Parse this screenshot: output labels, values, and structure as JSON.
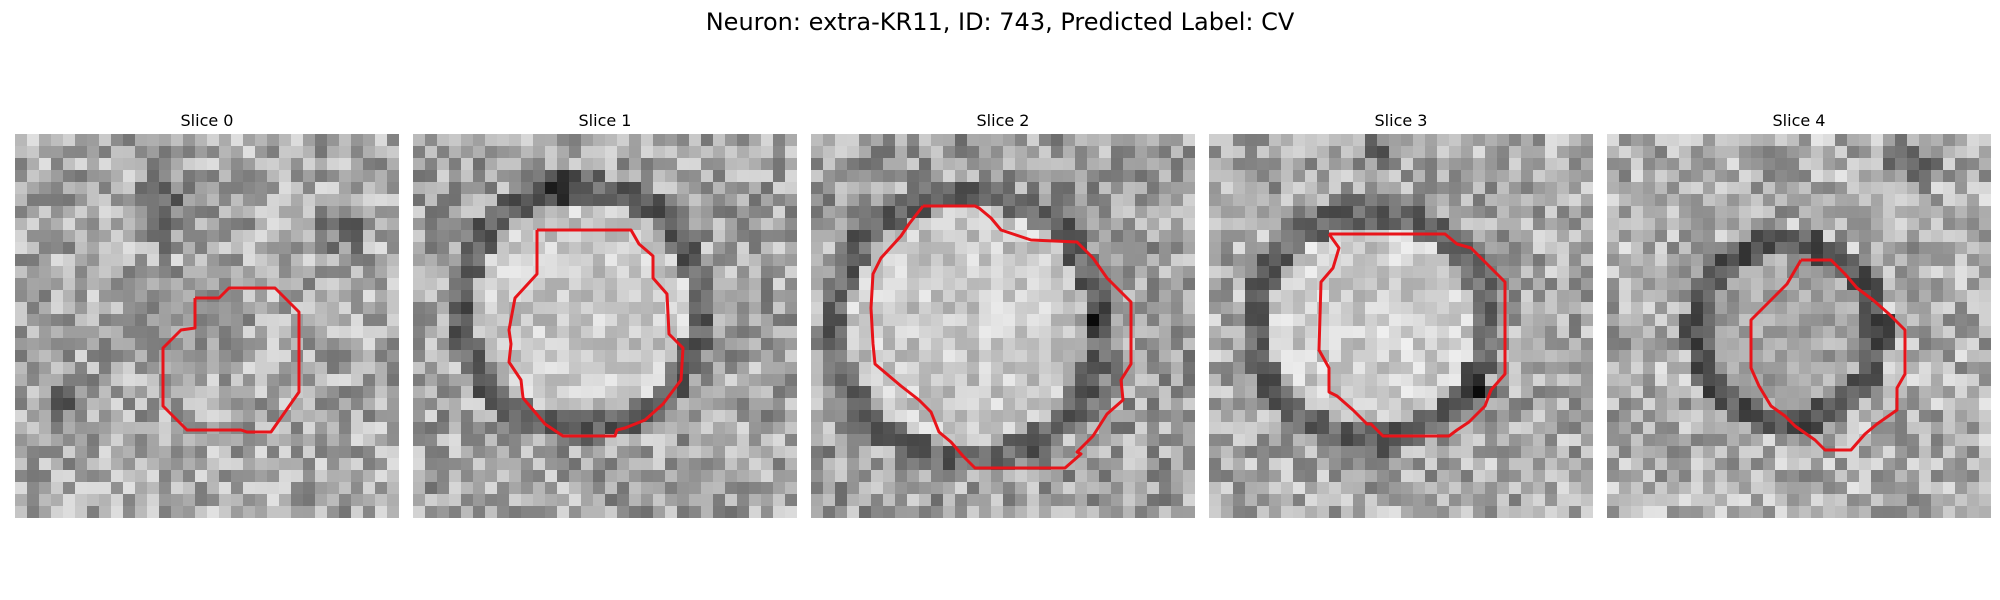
{
  "figure": {
    "title": "Neuron: extra-KR11, ID: 743, Predicted Label: CV"
  },
  "panels": [
    {
      "title": "Slice 0"
    },
    {
      "title": "Slice 1"
    },
    {
      "title": "Slice 2"
    },
    {
      "title": "Slice 3"
    },
    {
      "title": "Slice 4"
    }
  ],
  "colors": {
    "contour": "#e8141a",
    "background": "#ffffff"
  }
}
